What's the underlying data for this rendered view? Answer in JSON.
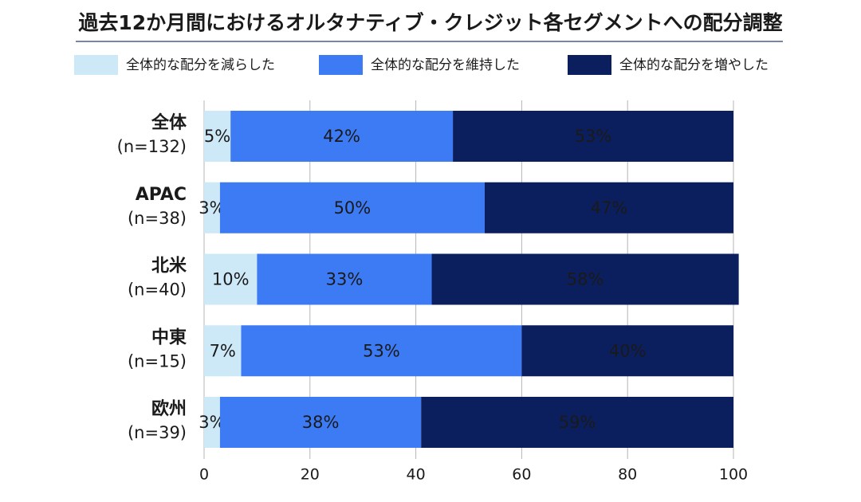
{
  "chart_data": {
    "type": "stacked-barh",
    "title": "過去12か月間におけるオルタナティブ・クレジット各セグメントへの配分調整",
    "categories": [
      [
        "全体",
        "(n=132)"
      ],
      [
        "APAC",
        "(n=38)"
      ],
      [
        "北米",
        "(n=40)"
      ],
      [
        "中東",
        "(n=15)"
      ],
      [
        "欧州",
        "(n=39)"
      ]
    ],
    "series": [
      {
        "name": "全体的な配分を減らした",
        "color": "#cde9f8",
        "label_color": "#333333",
        "values": [
          5,
          3,
          10,
          7,
          3
        ],
        "value_labels": [
          "5%",
          "3%",
          "10%",
          "7%",
          "3%"
        ]
      },
      {
        "name": "全体的な配分を維持した",
        "color": "#3c7bf4",
        "label_color": "#ffffff",
        "values": [
          42,
          50,
          33,
          53,
          38
        ],
        "value_labels": [
          "42%",
          "50%",
          "33%",
          "53%",
          "38%"
        ]
      },
      {
        "name": "全体的な配分を増やした",
        "color": "#0b1f5e",
        "label_color": "#ffffff",
        "values": [
          53,
          47,
          58,
          40,
          59
        ],
        "value_labels": [
          "53%",
          "47%",
          "58%",
          "40%",
          "59%"
        ]
      }
    ],
    "xlim": [
      0,
      100
    ],
    "xticks": [
      0,
      20,
      40,
      60,
      80,
      100
    ],
    "grid": true
  }
}
